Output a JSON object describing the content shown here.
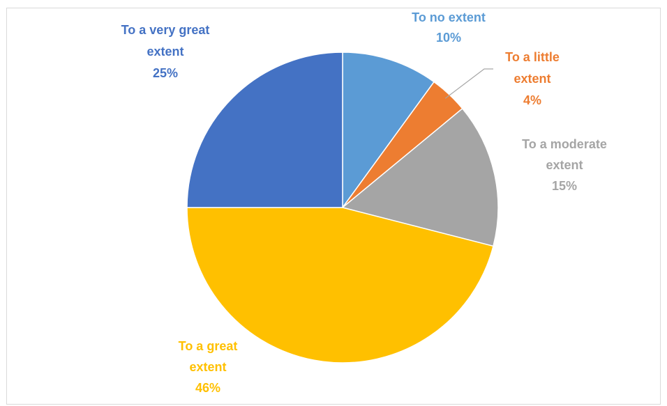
{
  "chart_data": {
    "type": "pie",
    "title": "",
    "slices": [
      {
        "label_lines": [
          "To no extent"
        ],
        "value_text": "10%",
        "value": 10,
        "color": "#5B9BD5"
      },
      {
        "label_lines": [
          "To a little",
          "extent"
        ],
        "value_text": "4%",
        "value": 4,
        "color": "#ED7D31"
      },
      {
        "label_lines": [
          "To a moderate",
          "extent"
        ],
        "value_text": "15%",
        "value": 15,
        "color": "#A5A5A5"
      },
      {
        "label_lines": [
          "To a great",
          "extent"
        ],
        "value_text": "46%",
        "value": 46,
        "color": "#FFC000"
      },
      {
        "label_lines": [
          "To a very great",
          "extent"
        ],
        "value_text": "25%",
        "value": 25,
        "color": "#4472C4"
      }
    ],
    "legend": "none",
    "start_angle_deg": 0,
    "direction": "clockwise"
  }
}
